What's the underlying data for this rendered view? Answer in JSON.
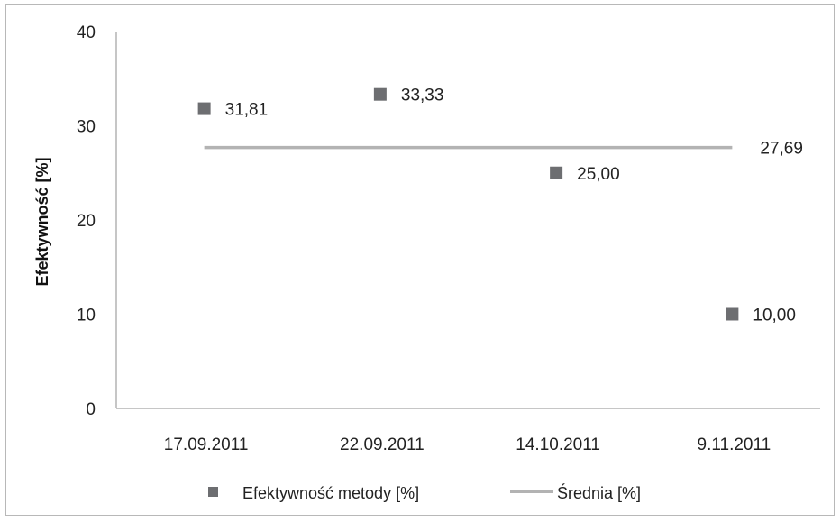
{
  "chart_data": {
    "type": "scatter",
    "categories": [
      "17.09.2011",
      "22.09.2011",
      "14.10.2011",
      "9.11.2011"
    ],
    "ylabel": "Efektywność [%]",
    "ylim": [
      0,
      40
    ],
    "yticks": [
      "0",
      "10",
      "20",
      "30",
      "40"
    ],
    "grid": false,
    "legend_position": "bottom",
    "series": [
      {
        "name": "Efektywność metody [%]",
        "type": "scatter",
        "values": [
          31.81,
          33.33,
          25.0,
          10.0
        ],
        "labels": [
          "31,81",
          "33,33",
          "25,00",
          "10,00"
        ],
        "color": "#6d6e71"
      },
      {
        "name": "Średnia [%]",
        "type": "line",
        "values": [
          27.69,
          27.69,
          27.69,
          27.69
        ],
        "label": "27,69",
        "color": "#b3b3b3"
      }
    ]
  }
}
